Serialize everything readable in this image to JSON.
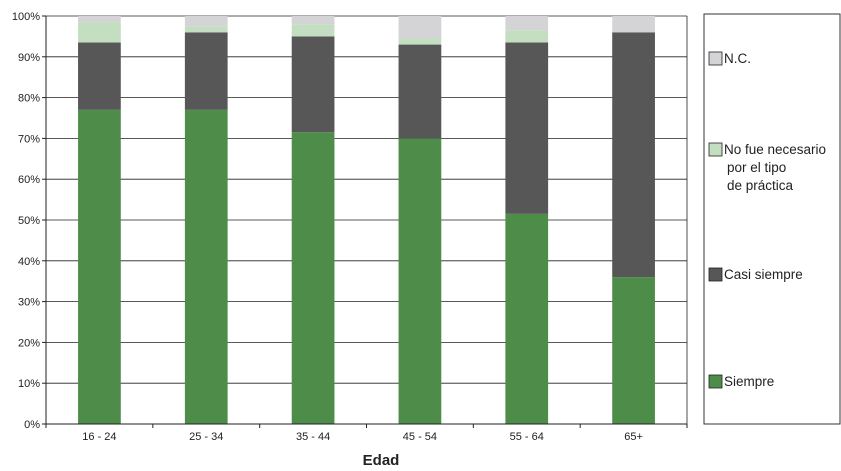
{
  "chart_data": {
    "type": "bar",
    "stacked": true,
    "xlabel": "Edad",
    "ylabel": "",
    "ylim": [
      0,
      100
    ],
    "y_ticks": [
      "0%",
      "10%",
      "20%",
      "30%",
      "40%",
      "50%",
      "60%",
      "70%",
      "80%",
      "90%",
      "100%"
    ],
    "categories": [
      "16 - 24",
      "25 - 34",
      "35 - 44",
      "45 - 54",
      "55 - 64",
      "65+"
    ],
    "series": [
      {
        "name": "Siempre",
        "color": "#4e8c4a",
        "values": [
          77,
          77,
          71.5,
          70,
          51.5,
          36
        ]
      },
      {
        "name": "Casi siempre",
        "color": "#575757",
        "values": [
          16.5,
          19,
          23.5,
          23,
          42,
          60
        ]
      },
      {
        "name": "No fue necesario por el tipo de práctica",
        "legend_lines": [
          "No fue necesario",
          "por el tipo",
          "de práctica"
        ],
        "color": "#c3dec1",
        "values": [
          5,
          1.5,
          3,
          1.5,
          3,
          0
        ]
      },
      {
        "name": "N.C.",
        "color": "#d4d4d6",
        "values": [
          1.5,
          2.5,
          2,
          5.5,
          3.5,
          4
        ]
      }
    ],
    "grid": true,
    "legend_position": "right"
  }
}
